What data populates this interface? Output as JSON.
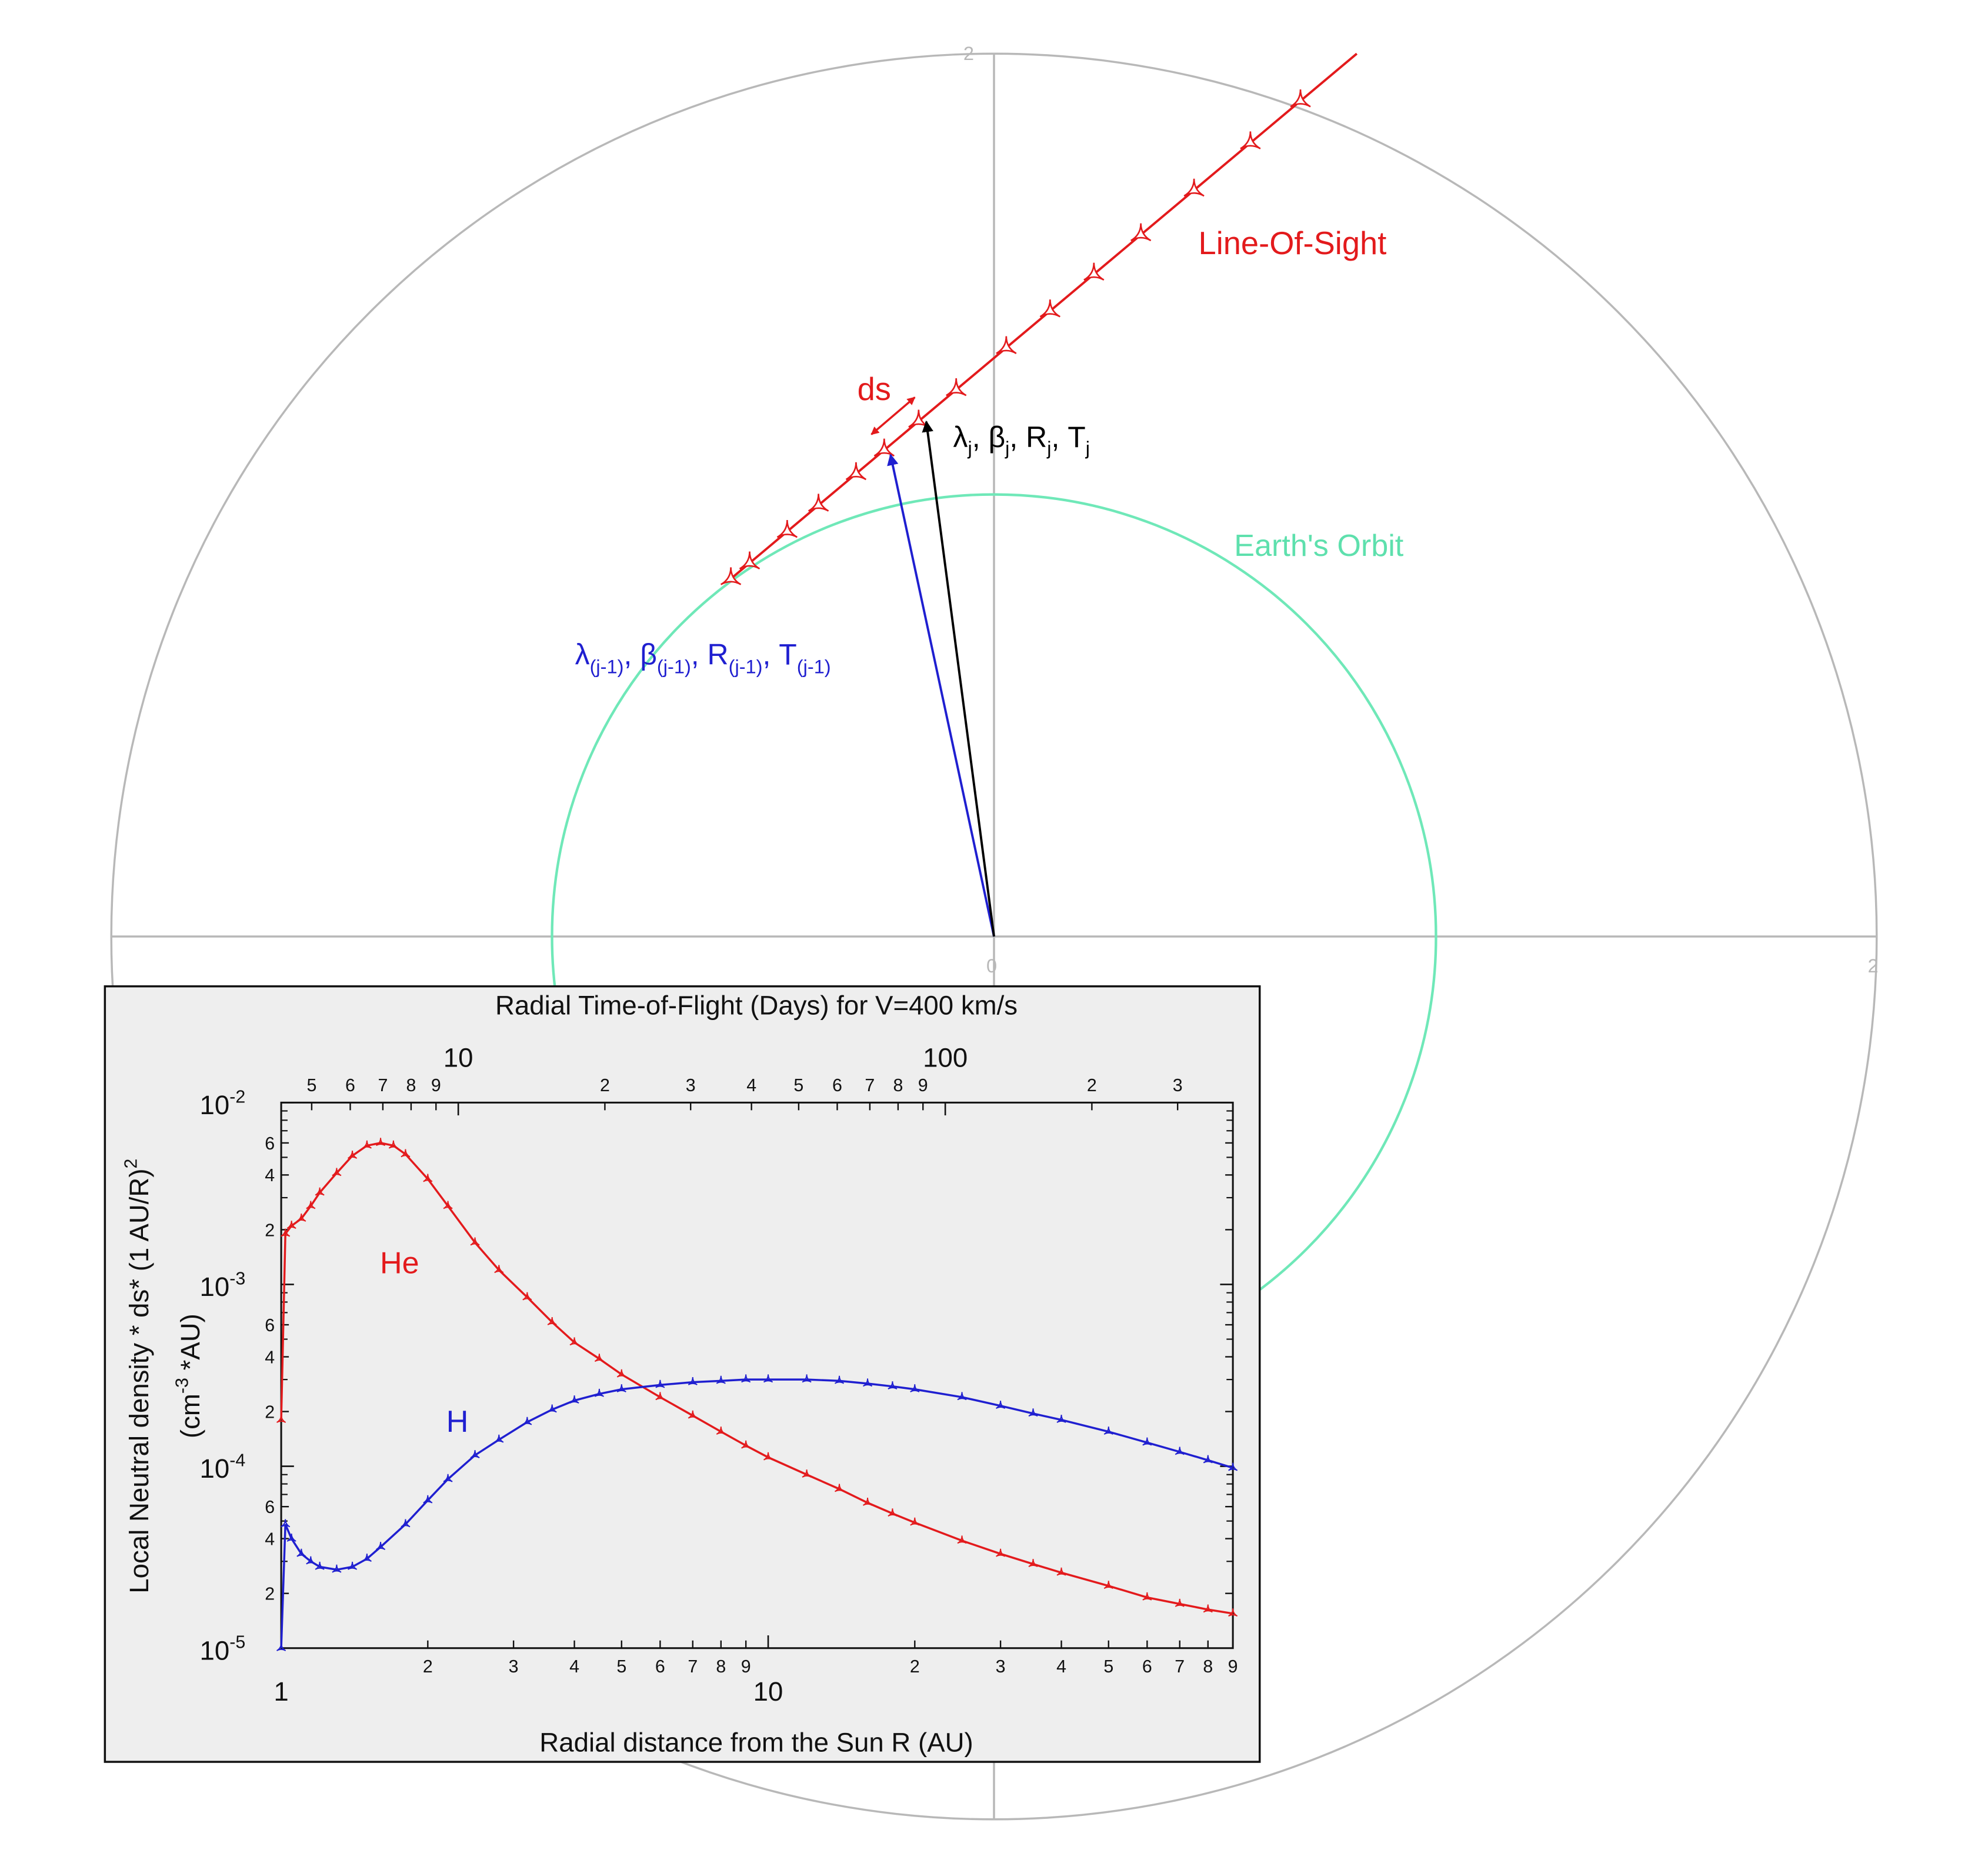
{
  "diagram": {
    "axis_ticks": {
      "top": "2",
      "right": "2",
      "origin": "0"
    },
    "line_of_sight_label": "Line-Of-Sight",
    "earth_orbit_label": "Earth's Orbit",
    "ds_label": "ds",
    "current_point": {
      "label": {
        "lambda": "λ",
        "beta": "β",
        "r": "R",
        "t": "T",
        "sub": "j",
        "sep": ", "
      }
    },
    "previous_point": {
      "label": {
        "lambda": "λ",
        "beta": "β",
        "r": "R",
        "t": "T",
        "sub": "(j-1)",
        "sep": ", "
      }
    },
    "colors": {
      "line_of_sight": "#e31a1c",
      "previous_vector": "#1f1fd0",
      "current_vector": "#000000",
      "earth_orbit": "#6fe8b8",
      "frame": "#b8b8b8"
    }
  },
  "chart_data": {
    "type": "line",
    "title": "Radial Time-of-Flight (Days) for V=400 km/s",
    "xlabel": "Radial distance from the Sun R (AU)",
    "ylabel": {
      "line1": "Local Neutral density * ds* (1 AU/R)",
      "line1_sup": "2",
      "line2_open": "(cm",
      "line2_sup": "-3",
      "line2_close": " *AU)"
    },
    "x_scale": "log",
    "y_scale": "log",
    "xlim": [
      1,
      90
    ],
    "ylim": [
      1e-05,
      0.01
    ],
    "x_major_ticks": [
      {
        "value": 1,
        "label": "1"
      },
      {
        "value": 10,
        "label": "10"
      }
    ],
    "x_minor_ticks": [
      {
        "value": 2,
        "label": "2"
      },
      {
        "value": 3,
        "label": "3"
      },
      {
        "value": 4,
        "label": "4"
      },
      {
        "value": 5,
        "label": "5"
      },
      {
        "value": 6,
        "label": "6"
      },
      {
        "value": 7,
        "label": "7"
      },
      {
        "value": 8,
        "label": "8"
      },
      {
        "value": 9,
        "label": "9"
      },
      {
        "value": 20,
        "label": "2"
      },
      {
        "value": 30,
        "label": "3"
      },
      {
        "value": 40,
        "label": "4"
      },
      {
        "value": 50,
        "label": "5"
      },
      {
        "value": 60,
        "label": "6"
      },
      {
        "value": 70,
        "label": "7"
      },
      {
        "value": 80,
        "label": "8"
      },
      {
        "value": 90,
        "label": "9"
      }
    ],
    "top_axis_major": [
      {
        "value": 10,
        "label": "10"
      },
      {
        "value": 100,
        "label": "100"
      }
    ],
    "top_axis_minor": [
      {
        "value": 5,
        "label": "5"
      },
      {
        "value": 6,
        "label": "6"
      },
      {
        "value": 7,
        "label": "7"
      },
      {
        "value": 8,
        "label": "8"
      },
      {
        "value": 9,
        "label": "9"
      },
      {
        "value": 20,
        "label": "2"
      },
      {
        "value": 30,
        "label": "3"
      },
      {
        "value": 40,
        "label": "4"
      },
      {
        "value": 50,
        "label": "5"
      },
      {
        "value": 60,
        "label": "6"
      },
      {
        "value": 70,
        "label": "7"
      },
      {
        "value": 80,
        "label": "8"
      },
      {
        "value": 90,
        "label": "9"
      },
      {
        "value": 200,
        "label": "2"
      },
      {
        "value": 300,
        "label": "3"
      }
    ],
    "y_major_ticks": [
      {
        "value": 0.01,
        "base": "10",
        "exp": "-2"
      },
      {
        "value": 0.001,
        "base": "10",
        "exp": "-3"
      },
      {
        "value": 0.0001,
        "base": "10",
        "exp": "-4"
      },
      {
        "value": 1e-05,
        "base": "10",
        "exp": "-5"
      }
    ],
    "y_minor_ticks": [
      {
        "value": 0.006,
        "label": "6"
      },
      {
        "value": 0.004,
        "label": "4"
      },
      {
        "value": 0.002,
        "label": "2"
      },
      {
        "value": 0.0006,
        "label": "6"
      },
      {
        "value": 0.0004,
        "label": "4"
      },
      {
        "value": 0.0002,
        "label": "2"
      },
      {
        "value": 6e-05,
        "label": "6"
      },
      {
        "value": 4e-05,
        "label": "4"
      },
      {
        "value": 2e-05,
        "label": "2"
      }
    ],
    "series": [
      {
        "name": "He",
        "color": "#e31a1c",
        "x": [
          1.0,
          1.02,
          1.05,
          1.1,
          1.15,
          1.2,
          1.3,
          1.4,
          1.5,
          1.6,
          1.7,
          1.8,
          2.0,
          2.2,
          2.5,
          2.8,
          3.2,
          3.6,
          4.0,
          4.5,
          5.0,
          6.0,
          7.0,
          8.0,
          9.0,
          10.0,
          12.0,
          14.0,
          16.0,
          18.0,
          20.0,
          25.0,
          30.0,
          35.0,
          40.0,
          50.0,
          60.0,
          70.0,
          80.0,
          90.0
        ],
        "y": [
          0.00018,
          0.0019,
          0.0021,
          0.0023,
          0.0027,
          0.0032,
          0.0041,
          0.0051,
          0.0058,
          0.006,
          0.0058,
          0.0052,
          0.0038,
          0.0027,
          0.0017,
          0.0012,
          0.00085,
          0.00062,
          0.00048,
          0.00039,
          0.00032,
          0.00024,
          0.00019,
          0.000155,
          0.00013,
          0.000112,
          9e-05,
          7.5e-05,
          6.3e-05,
          5.5e-05,
          4.9e-05,
          3.9e-05,
          3.3e-05,
          2.9e-05,
          2.6e-05,
          2.2e-05,
          1.9e-05,
          1.75e-05,
          1.63e-05,
          1.55e-05
        ]
      },
      {
        "name": "H",
        "color": "#1f1fd0",
        "x": [
          1.0,
          1.02,
          1.05,
          1.1,
          1.15,
          1.2,
          1.3,
          1.4,
          1.5,
          1.6,
          1.8,
          2.0,
          2.2,
          2.5,
          2.8,
          3.2,
          3.6,
          4.0,
          4.5,
          5.0,
          6.0,
          7.0,
          8.0,
          9.0,
          10.0,
          12.0,
          14.0,
          16.0,
          18.0,
          20.0,
          25.0,
          30.0,
          35.0,
          40.0,
          50.0,
          60.0,
          70.0,
          80.0,
          90.0
        ],
        "y": [
          1e-05,
          4.8e-05,
          4e-05,
          3.3e-05,
          3e-05,
          2.8e-05,
          2.7e-05,
          2.8e-05,
          3.1e-05,
          3.6e-05,
          4.8e-05,
          6.5e-05,
          8.5e-05,
          0.000115,
          0.00014,
          0.000175,
          0.000205,
          0.00023,
          0.00025,
          0.000265,
          0.00028,
          0.00029,
          0.000295,
          0.0003,
          0.0003,
          0.0003,
          0.000295,
          0.000285,
          0.000275,
          0.000265,
          0.00024,
          0.000215,
          0.000195,
          0.00018,
          0.000155,
          0.000135,
          0.00012,
          0.000108,
          9.8e-05
        ]
      }
    ]
  }
}
